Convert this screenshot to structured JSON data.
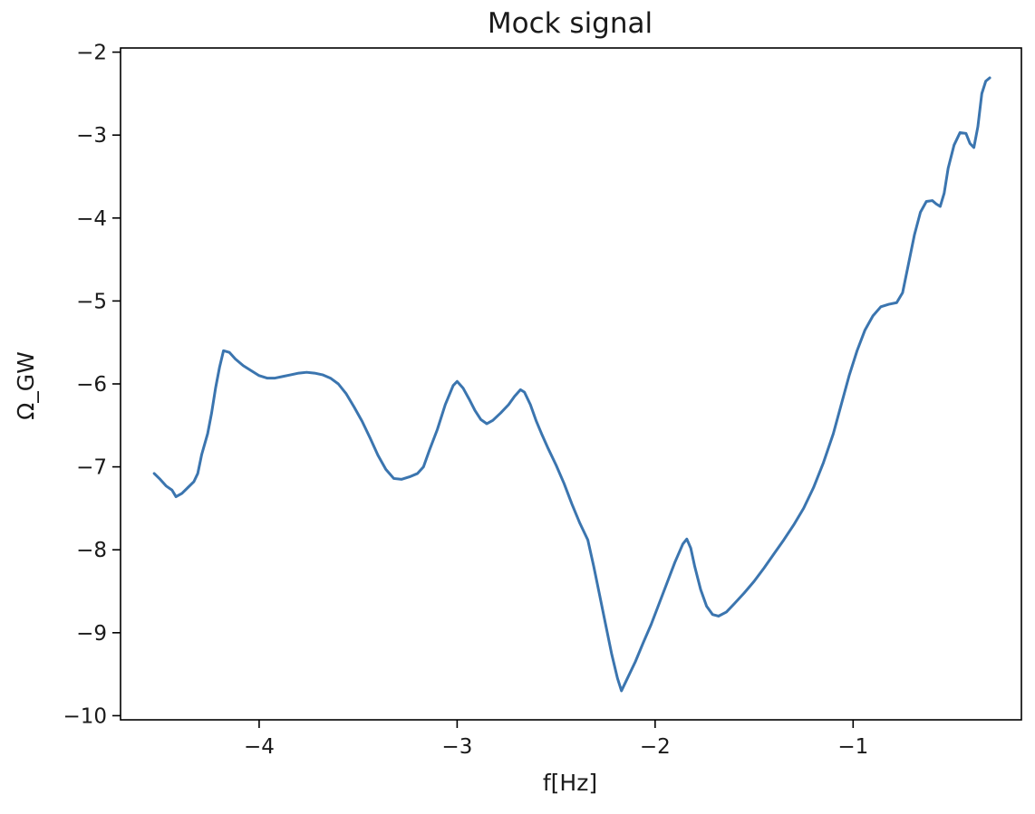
{
  "chart_data": {
    "type": "line",
    "title": "Mock signal",
    "xlabel": "f[Hz]",
    "ylabel": "Ω_GW",
    "xlim": [
      -4.7,
      -0.15
    ],
    "ylim": [
      -10.05,
      -1.95
    ],
    "xticks": [
      -4,
      -3,
      -2,
      -1
    ],
    "yticks": [
      -2,
      -3,
      -4,
      -5,
      -6,
      -7,
      -8,
      -9,
      -10
    ],
    "xtick_labels": [
      "−4",
      "−3",
      "−2",
      "−1"
    ],
    "ytick_labels": [
      "−2",
      "−3",
      "−4",
      "−5",
      "−6",
      "−7",
      "−8",
      "−9",
      "−10"
    ],
    "grid": false,
    "line_color": "#3b75af",
    "series": [
      {
        "points": [
          [
            -4.53,
            -7.08
          ],
          [
            -4.5,
            -7.15
          ],
          [
            -4.47,
            -7.23
          ],
          [
            -4.44,
            -7.28
          ],
          [
            -4.42,
            -7.36
          ],
          [
            -4.39,
            -7.32
          ],
          [
            -4.36,
            -7.25
          ],
          [
            -4.33,
            -7.18
          ],
          [
            -4.31,
            -7.08
          ],
          [
            -4.29,
            -6.85
          ],
          [
            -4.26,
            -6.6
          ],
          [
            -4.24,
            -6.35
          ],
          [
            -4.22,
            -6.05
          ],
          [
            -4.2,
            -5.8
          ],
          [
            -4.18,
            -5.6
          ],
          [
            -4.15,
            -5.62
          ],
          [
            -4.12,
            -5.7
          ],
          [
            -4.08,
            -5.78
          ],
          [
            -4.04,
            -5.84
          ],
          [
            -4.0,
            -5.9
          ],
          [
            -3.96,
            -5.93
          ],
          [
            -3.92,
            -5.93
          ],
          [
            -3.88,
            -5.91
          ],
          [
            -3.84,
            -5.89
          ],
          [
            -3.8,
            -5.87
          ],
          [
            -3.76,
            -5.86
          ],
          [
            -3.72,
            -5.87
          ],
          [
            -3.68,
            -5.89
          ],
          [
            -3.64,
            -5.93
          ],
          [
            -3.6,
            -6.0
          ],
          [
            -3.56,
            -6.12
          ],
          [
            -3.52,
            -6.28
          ],
          [
            -3.48,
            -6.45
          ],
          [
            -3.44,
            -6.65
          ],
          [
            -3.4,
            -6.86
          ],
          [
            -3.36,
            -7.03
          ],
          [
            -3.32,
            -7.14
          ],
          [
            -3.28,
            -7.15
          ],
          [
            -3.24,
            -7.12
          ],
          [
            -3.2,
            -7.08
          ],
          [
            -3.17,
            -7.0
          ],
          [
            -3.14,
            -6.8
          ],
          [
            -3.1,
            -6.55
          ],
          [
            -3.06,
            -6.25
          ],
          [
            -3.02,
            -6.02
          ],
          [
            -3.0,
            -5.97
          ],
          [
            -2.97,
            -6.05
          ],
          [
            -2.94,
            -6.18
          ],
          [
            -2.91,
            -6.32
          ],
          [
            -2.88,
            -6.43
          ],
          [
            -2.85,
            -6.48
          ],
          [
            -2.82,
            -6.44
          ],
          [
            -2.78,
            -6.35
          ],
          [
            -2.74,
            -6.25
          ],
          [
            -2.71,
            -6.15
          ],
          [
            -2.68,
            -6.07
          ],
          [
            -2.66,
            -6.1
          ],
          [
            -2.63,
            -6.25
          ],
          [
            -2.6,
            -6.45
          ],
          [
            -2.57,
            -6.62
          ],
          [
            -2.54,
            -6.78
          ],
          [
            -2.5,
            -6.98
          ],
          [
            -2.46,
            -7.2
          ],
          [
            -2.42,
            -7.45
          ],
          [
            -2.38,
            -7.68
          ],
          [
            -2.34,
            -7.88
          ],
          [
            -2.31,
            -8.2
          ],
          [
            -2.28,
            -8.55
          ],
          [
            -2.25,
            -8.9
          ],
          [
            -2.22,
            -9.25
          ],
          [
            -2.19,
            -9.55
          ],
          [
            -2.17,
            -9.7
          ],
          [
            -2.14,
            -9.55
          ],
          [
            -2.1,
            -9.35
          ],
          [
            -2.06,
            -9.12
          ],
          [
            -2.02,
            -8.9
          ],
          [
            -1.98,
            -8.65
          ],
          [
            -1.94,
            -8.4
          ],
          [
            -1.9,
            -8.15
          ],
          [
            -1.86,
            -7.93
          ],
          [
            -1.84,
            -7.87
          ],
          [
            -1.82,
            -7.98
          ],
          [
            -1.8,
            -8.2
          ],
          [
            -1.77,
            -8.48
          ],
          [
            -1.74,
            -8.68
          ],
          [
            -1.71,
            -8.78
          ],
          [
            -1.68,
            -8.8
          ],
          [
            -1.64,
            -8.75
          ],
          [
            -1.6,
            -8.65
          ],
          [
            -1.55,
            -8.52
          ],
          [
            -1.5,
            -8.38
          ],
          [
            -1.45,
            -8.22
          ],
          [
            -1.4,
            -8.05
          ],
          [
            -1.35,
            -7.88
          ],
          [
            -1.3,
            -7.7
          ],
          [
            -1.25,
            -7.5
          ],
          [
            -1.2,
            -7.25
          ],
          [
            -1.15,
            -6.95
          ],
          [
            -1.1,
            -6.6
          ],
          [
            -1.06,
            -6.25
          ],
          [
            -1.02,
            -5.9
          ],
          [
            -0.98,
            -5.6
          ],
          [
            -0.94,
            -5.35
          ],
          [
            -0.9,
            -5.18
          ],
          [
            -0.86,
            -5.07
          ],
          [
            -0.82,
            -5.04
          ],
          [
            -0.78,
            -5.02
          ],
          [
            -0.75,
            -4.9
          ],
          [
            -0.72,
            -4.55
          ],
          [
            -0.69,
            -4.2
          ],
          [
            -0.66,
            -3.93
          ],
          [
            -0.63,
            -3.8
          ],
          [
            -0.6,
            -3.79
          ],
          [
            -0.58,
            -3.83
          ],
          [
            -0.56,
            -3.86
          ],
          [
            -0.54,
            -3.7
          ],
          [
            -0.52,
            -3.4
          ],
          [
            -0.49,
            -3.12
          ],
          [
            -0.46,
            -2.97
          ],
          [
            -0.43,
            -2.98
          ],
          [
            -0.41,
            -3.1
          ],
          [
            -0.39,
            -3.15
          ],
          [
            -0.37,
            -2.9
          ],
          [
            -0.35,
            -2.5
          ],
          [
            -0.33,
            -2.35
          ],
          [
            -0.31,
            -2.31
          ]
        ]
      }
    ]
  }
}
